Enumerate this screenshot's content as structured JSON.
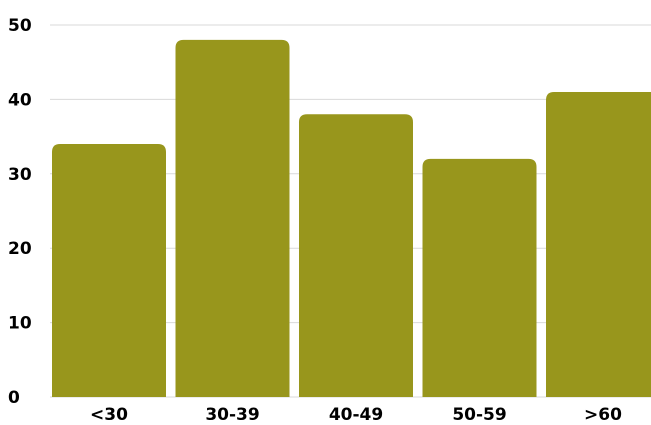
{
  "chart_data": {
    "type": "bar",
    "title": "",
    "xlabel": "",
    "ylabel": "",
    "categories": [
      "<30",
      "30-39",
      "40-49",
      "50-59",
      ">60"
    ],
    "values": [
      34,
      48,
      38,
      32,
      41
    ],
    "ylim": [
      0,
      50
    ],
    "yticks": [
      0,
      10,
      20,
      30,
      40,
      50
    ],
    "grid": true,
    "legend": "none",
    "colors": {
      "bar": "#98961c",
      "grid": "#d9d9d9",
      "text": "#000000"
    }
  }
}
